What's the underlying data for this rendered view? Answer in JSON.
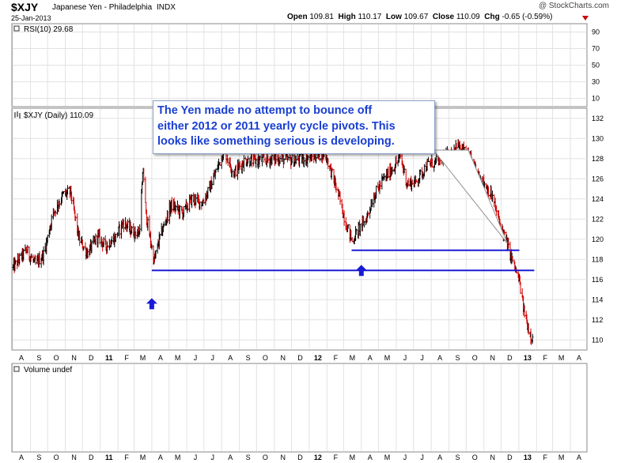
{
  "header": {
    "symbol": "$XJY",
    "name": "Japanese Yen - Philadelphia",
    "exchange": "INDX",
    "date": "25-Jan-2013",
    "watermark": "@ StockCharts.com",
    "open_label": "Open",
    "open": "109.81",
    "high_label": "High",
    "high": "110.17",
    "low_label": "Low",
    "low": "109.67",
    "close_label": "Close",
    "close": "110.09",
    "chg_label": "Chg",
    "chg": "-0.65 (-0.59%)"
  },
  "colors": {
    "up_bar": "#000000",
    "down_bar": "#d00000",
    "support_line": "#1a1ad6",
    "annotation_text": "#1a3fd1",
    "grid": "#e2e2e2",
    "panel_border": "#8a8a8a"
  },
  "rsi_panel": {
    "label": "RSI(10) 29.68",
    "ticks": [
      "90",
      "70",
      "50",
      "30",
      "10"
    ]
  },
  "price_panel": {
    "label": "$XJY (Daily) 110.09",
    "ticks": [
      "132",
      "130",
      "128",
      "126",
      "124",
      "122",
      "120",
      "118",
      "116",
      "114",
      "112",
      "110"
    ]
  },
  "volume_panel": {
    "label": "Volume undef"
  },
  "x_axis": {
    "ticks": [
      "A",
      "S",
      "O",
      "N",
      "D",
      "11",
      "F",
      "M",
      "A",
      "M",
      "J",
      "J",
      "A",
      "S",
      "O",
      "N",
      "D",
      "12",
      "F",
      "M",
      "A",
      "M",
      "J",
      "J",
      "A",
      "S",
      "O",
      "N",
      "D",
      "13",
      "F",
      "M",
      "A"
    ]
  },
  "annotation": {
    "text": "The Yen made no attempt to bounce off\neither 2012 or 2011 yearly cycle pivots. This\nlooks like something serious is developing."
  },
  "chart_data": {
    "type": "ohlc",
    "title": "$XJY Japanese Yen - Philadelphia INDX",
    "ylim": [
      109,
      133
    ],
    "y_scale": "linear",
    "grid": true,
    "x_start": "2010-08-01",
    "x_end": "2013-04-30",
    "close_path": [
      [
        "2010-08-02",
        117.2
      ],
      [
        "2010-08-25",
        118.9
      ],
      [
        "2010-09-10",
        117.5
      ],
      [
        "2010-09-25",
        118.6
      ],
      [
        "2010-10-10",
        122.5
      ],
      [
        "2010-10-28",
        124.4
      ],
      [
        "2010-11-10",
        124.7
      ],
      [
        "2010-11-25",
        120.0
      ],
      [
        "2010-12-10",
        118.6
      ],
      [
        "2010-12-28",
        120.3
      ],
      [
        "2011-01-10",
        119.3
      ],
      [
        "2011-01-28",
        120.2
      ],
      [
        "2011-02-10",
        121.7
      ],
      [
        "2011-02-25",
        120.8
      ],
      [
        "2011-03-10",
        120.6
      ],
      [
        "2011-03-17",
        127.0
      ],
      [
        "2011-03-22",
        122.4
      ],
      [
        "2011-04-05",
        117.8
      ],
      [
        "2011-04-15",
        120.2
      ],
      [
        "2011-05-05",
        123.4
      ],
      [
        "2011-05-25",
        122.6
      ],
      [
        "2011-06-10",
        124.0
      ],
      [
        "2011-06-28",
        123.6
      ],
      [
        "2011-07-10",
        124.9
      ],
      [
        "2011-07-28",
        127.6
      ],
      [
        "2011-08-05",
        128.9
      ],
      [
        "2011-08-15",
        127.5
      ],
      [
        "2011-08-22",
        126.6
      ],
      [
        "2011-09-10",
        127.8
      ],
      [
        "2011-10-05",
        127.8
      ],
      [
        "2011-11-05",
        128.0
      ],
      [
        "2011-12-05",
        127.8
      ],
      [
        "2012-01-10",
        128.2
      ],
      [
        "2012-01-28",
        128.6
      ],
      [
        "2012-02-05",
        127.3
      ],
      [
        "2012-02-20",
        124.6
      ],
      [
        "2012-03-05",
        121.6
      ],
      [
        "2012-03-16",
        119.8
      ],
      [
        "2012-03-28",
        121.1
      ],
      [
        "2012-04-08",
        121.8
      ],
      [
        "2012-04-22",
        124.2
      ],
      [
        "2012-05-08",
        125.8
      ],
      [
        "2012-05-28",
        127.2
      ],
      [
        "2012-06-08",
        128.2
      ],
      [
        "2012-06-20",
        125.5
      ],
      [
        "2012-07-05",
        125.7
      ],
      [
        "2012-07-25",
        127.4
      ],
      [
        "2012-08-08",
        127.6
      ],
      [
        "2012-08-20",
        128.1
      ],
      [
        "2012-09-05",
        128.4
      ],
      [
        "2012-09-14",
        129.5
      ],
      [
        "2012-09-28",
        128.6
      ],
      [
        "2012-10-10",
        127.9
      ],
      [
        "2012-10-22",
        126.3
      ],
      [
        "2012-11-05",
        125.3
      ],
      [
        "2012-11-16",
        124.1
      ],
      [
        "2012-11-28",
        121.7
      ],
      [
        "2012-12-10",
        119.8
      ],
      [
        "2012-12-20",
        118.0
      ],
      [
        "2013-01-02",
        115.8
      ],
      [
        "2013-01-10",
        112.9
      ],
      [
        "2013-01-18",
        111.1
      ],
      [
        "2013-01-25",
        110.09
      ]
    ],
    "support_lines": [
      {
        "from": "2011-04-01",
        "to": "2013-01-28",
        "value": 116.9
      },
      {
        "from": "2012-03-15",
        "to": "2013-01-02",
        "value": 118.9
      }
    ],
    "markers": [
      {
        "shape": "up-arrow",
        "x": "2011-04-01",
        "y": 113.6
      },
      {
        "shape": "up-arrow",
        "x": "2012-04-01",
        "y": 116.9
      }
    ]
  }
}
